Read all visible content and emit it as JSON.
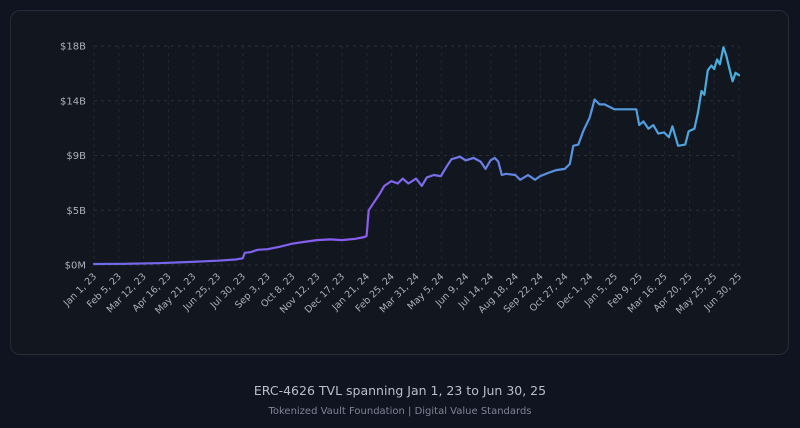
{
  "chart_data": {
    "type": "line",
    "title": "",
    "xlabel": "",
    "ylabel": "",
    "ylim_billions": [
      0,
      18
    ],
    "y_tick_labels": [
      "$0M",
      "$5B",
      "$9B",
      "$14B",
      "$18B"
    ],
    "x_tick_labels": [
      "Jan 1, 23",
      "Feb 5, 23",
      "Mar 12, 23",
      "Apr 16, 23",
      "May 21, 23",
      "Jun 25, 23",
      "Jul 30, 23",
      "Sep 3, 23",
      "Oct 8, 23",
      "Nov 12, 23",
      "Dec 17, 23",
      "Jan 21, 24",
      "Feb 25, 24",
      "Mar 31, 24",
      "May 5, 24",
      "Jun 9, 24",
      "Jul 14, 24",
      "Aug 18, 24",
      "Sep 22, 24",
      "Oct 27, 24",
      "Dec 1, 24",
      "Jan 5, 25",
      "Feb 9, 25",
      "Mar 16, 25",
      "Apr 20, 25",
      "May 25, 25",
      "Jun 30, 25"
    ],
    "grid": true,
    "colors": [
      "#6f6be8",
      "#8a5cf0",
      "#5a8fe0",
      "#48b0dc"
    ],
    "series": [
      {
        "unit": "billions USD",
        "points": [
          [
            "2023-01-01",
            0.08
          ],
          [
            "2023-02-15",
            0.1
          ],
          [
            "2023-04-01",
            0.15
          ],
          [
            "2023-05-15",
            0.25
          ],
          [
            "2023-06-25",
            0.35
          ],
          [
            "2023-07-20",
            0.45
          ],
          [
            "2023-07-30",
            0.55
          ],
          [
            "2023-08-02",
            1.0
          ],
          [
            "2023-08-10",
            1.05
          ],
          [
            "2023-08-20",
            1.25
          ],
          [
            "2023-09-03",
            1.3
          ],
          [
            "2023-09-20",
            1.5
          ],
          [
            "2023-10-08",
            1.75
          ],
          [
            "2023-10-25",
            1.9
          ],
          [
            "2023-11-12",
            2.05
          ],
          [
            "2023-12-01",
            2.1
          ],
          [
            "2023-12-17",
            2.05
          ],
          [
            "2024-01-05",
            2.15
          ],
          [
            "2024-01-18",
            2.3
          ],
          [
            "2024-01-21",
            2.4
          ],
          [
            "2024-01-24",
            4.5
          ],
          [
            "2024-02-01",
            5.2
          ],
          [
            "2024-02-08",
            5.8
          ],
          [
            "2024-02-15",
            6.5
          ],
          [
            "2024-02-25",
            6.9
          ],
          [
            "2024-03-05",
            6.7
          ],
          [
            "2024-03-12",
            7.1
          ],
          [
            "2024-03-20",
            6.7
          ],
          [
            "2024-03-31",
            7.1
          ],
          [
            "2024-04-08",
            6.5
          ],
          [
            "2024-04-15",
            7.2
          ],
          [
            "2024-04-25",
            7.4
          ],
          [
            "2024-05-05",
            7.3
          ],
          [
            "2024-05-12",
            8.0
          ],
          [
            "2024-05-20",
            8.7
          ],
          [
            "2024-06-01",
            8.9
          ],
          [
            "2024-06-09",
            8.6
          ],
          [
            "2024-06-20",
            8.8
          ],
          [
            "2024-06-30",
            8.5
          ],
          [
            "2024-07-07",
            7.9
          ],
          [
            "2024-07-14",
            8.6
          ],
          [
            "2024-07-20",
            8.8
          ],
          [
            "2024-07-25",
            8.5
          ],
          [
            "2024-07-30",
            7.4
          ],
          [
            "2024-08-05",
            7.5
          ],
          [
            "2024-08-18",
            7.4
          ],
          [
            "2024-08-25",
            7.0
          ],
          [
            "2024-09-05",
            7.4
          ],
          [
            "2024-09-15",
            7.0
          ],
          [
            "2024-09-22",
            7.3
          ],
          [
            "2024-10-05",
            7.6
          ],
          [
            "2024-10-15",
            7.8
          ],
          [
            "2024-10-27",
            7.9
          ],
          [
            "2024-11-03",
            8.3
          ],
          [
            "2024-11-08",
            9.8
          ],
          [
            "2024-11-15",
            9.9
          ],
          [
            "2024-11-22",
            11.0
          ],
          [
            "2024-12-01",
            12.1
          ],
          [
            "2024-12-08",
            13.6
          ],
          [
            "2024-12-15",
            13.2
          ],
          [
            "2024-12-22",
            13.2
          ],
          [
            "2025-01-05",
            12.8
          ],
          [
            "2025-01-20",
            12.8
          ],
          [
            "2025-02-05",
            12.8
          ],
          [
            "2025-02-09",
            11.5
          ],
          [
            "2025-02-15",
            11.8
          ],
          [
            "2025-02-22",
            11.2
          ],
          [
            "2025-03-01",
            11.5
          ],
          [
            "2025-03-08",
            10.8
          ],
          [
            "2025-03-16",
            10.9
          ],
          [
            "2025-03-23",
            10.5
          ],
          [
            "2025-03-28",
            11.4
          ],
          [
            "2025-04-05",
            9.8
          ],
          [
            "2025-04-15",
            9.9
          ],
          [
            "2025-04-20",
            11.0
          ],
          [
            "2025-04-28",
            11.2
          ],
          [
            "2025-05-03",
            12.5
          ],
          [
            "2025-05-08",
            14.3
          ],
          [
            "2025-05-12",
            14.0
          ],
          [
            "2025-05-17",
            16.0
          ],
          [
            "2025-05-22",
            16.4
          ],
          [
            "2025-05-26",
            16.1
          ],
          [
            "2025-05-30",
            16.9
          ],
          [
            "2025-06-03",
            16.5
          ],
          [
            "2025-06-08",
            17.9
          ],
          [
            "2025-06-12",
            17.2
          ],
          [
            "2025-06-17",
            16.0
          ],
          [
            "2025-06-21",
            15.1
          ],
          [
            "2025-06-25",
            15.8
          ],
          [
            "2025-06-30",
            15.6
          ]
        ]
      }
    ]
  },
  "caption": "ERC-4626 TVL spanning Jan 1, 23 to Jun 30, 25",
  "source": "Tokenized Vault Foundation | Digital Value Standards"
}
